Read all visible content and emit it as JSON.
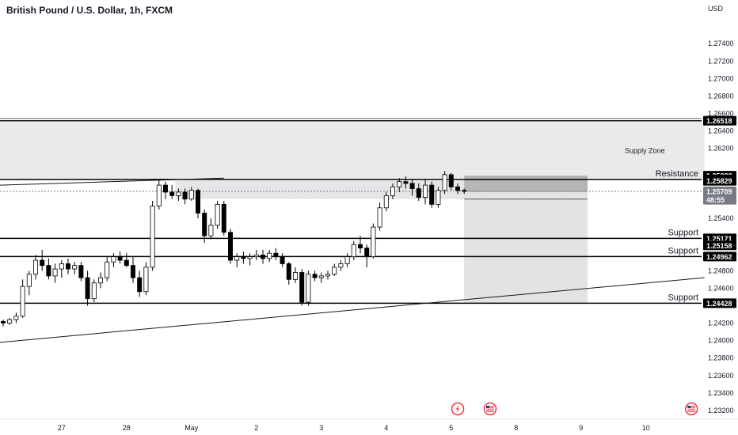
{
  "chart_data": {
    "type": "candlestick",
    "title": "British Pound / U.S. Dollar, 1h, FXCM",
    "currency": "USD",
    "ylim": [
      1.231,
      1.279
    ],
    "y_ticks": [
      "1.27400",
      "1.27200",
      "1.27000",
      "1.26800",
      "1.26600",
      "1.26400",
      "1.26200",
      "1.25400",
      "1.24800",
      "1.24600",
      "1.24200",
      "1.24000",
      "1.23800",
      "1.23600",
      "1.23400",
      "1.23200"
    ],
    "x_ticks": [
      {
        "label": "27",
        "i": 9
      },
      {
        "label": "28",
        "i": 19
      },
      {
        "label": "May",
        "i": 29
      },
      {
        "label": "2",
        "i": 39
      },
      {
        "label": "3",
        "i": 49
      },
      {
        "label": "4",
        "i": 59
      },
      {
        "label": "5",
        "i": 69
      },
      {
        "label": "8",
        "i": 79
      },
      {
        "label": "9",
        "i": 89
      },
      {
        "label": "10",
        "i": 99
      }
    ],
    "x_count": 110,
    "candles": [
      [
        1.2422,
        1.2424,
        1.2416,
        1.242
      ],
      [
        1.242,
        1.2426,
        1.2418,
        1.2424
      ],
      [
        1.2424,
        1.2432,
        1.242,
        1.2428
      ],
      [
        1.2428,
        1.247,
        1.2426,
        1.2462
      ],
      [
        1.2462,
        1.248,
        1.2452,
        1.2476
      ],
      [
        1.2476,
        1.2498,
        1.247,
        1.2492
      ],
      [
        1.2492,
        1.2504,
        1.248,
        1.2486
      ],
      [
        1.2486,
        1.2494,
        1.247,
        1.2474
      ],
      [
        1.2474,
        1.2488,
        1.2466,
        1.2482
      ],
      [
        1.2482,
        1.2492,
        1.2472,
        1.2488
      ],
      [
        1.2488,
        1.2494,
        1.2476,
        1.2482
      ],
      [
        1.2482,
        1.249,
        1.2476,
        1.2486
      ],
      [
        1.2486,
        1.249,
        1.2468,
        1.2472
      ],
      [
        1.2472,
        1.248,
        1.244,
        1.2448
      ],
      [
        1.2448,
        1.247,
        1.2444,
        1.2466
      ],
      [
        1.2466,
        1.2478,
        1.246,
        1.2472
      ],
      [
        1.2472,
        1.2496,
        1.2468,
        1.249
      ],
      [
        1.249,
        1.25,
        1.2484,
        1.2496
      ],
      [
        1.2496,
        1.2502,
        1.2488,
        1.2492
      ],
      [
        1.2492,
        1.25,
        1.2484,
        1.2486
      ],
      [
        1.2486,
        1.2496,
        1.2466,
        1.2472
      ],
      [
        1.2472,
        1.248,
        1.245,
        1.2456
      ],
      [
        1.2456,
        1.249,
        1.2452,
        1.2484
      ],
      [
        1.2484,
        1.256,
        1.248,
        1.2554
      ],
      [
        1.2554,
        1.2584,
        1.255,
        1.2578
      ],
      [
        1.2578,
        1.2582,
        1.2562,
        1.257
      ],
      [
        1.257,
        1.2578,
        1.2562,
        1.2566
      ],
      [
        1.2566,
        1.2574,
        1.256,
        1.257
      ],
      [
        1.257,
        1.2574,
        1.2556,
        1.2562
      ],
      [
        1.2562,
        1.2576,
        1.256,
        1.2572
      ],
      [
        1.2572,
        1.2574,
        1.254,
        1.2546
      ],
      [
        1.2546,
        1.255,
        1.2512,
        1.252
      ],
      [
        1.252,
        1.254,
        1.2516,
        1.2532
      ],
      [
        1.2532,
        1.256,
        1.2528,
        1.2556
      ],
      [
        1.2556,
        1.256,
        1.252,
        1.2524
      ],
      [
        1.2524,
        1.2528,
        1.2488,
        1.2492
      ],
      [
        1.2492,
        1.25,
        1.2484,
        1.2496
      ],
      [
        1.2496,
        1.2502,
        1.2488,
        1.2494
      ],
      [
        1.2494,
        1.25,
        1.2486,
        1.2496
      ],
      [
        1.2496,
        1.2504,
        1.2492,
        1.2498
      ],
      [
        1.2498,
        1.2504,
        1.2488,
        1.2494
      ],
      [
        1.2494,
        1.2504,
        1.249,
        1.25
      ],
      [
        1.25,
        1.2506,
        1.2492,
        1.2496
      ],
      [
        1.2496,
        1.25,
        1.2484,
        1.2488
      ],
      [
        1.2488,
        1.249,
        1.2464,
        1.247
      ],
      [
        1.247,
        1.2484,
        1.2466,
        1.2478
      ],
      [
        1.2478,
        1.2482,
        1.244,
        1.2444
      ],
      [
        1.2444,
        1.248,
        1.244,
        1.2476
      ],
      [
        1.2476,
        1.248,
        1.2468,
        1.2472
      ],
      [
        1.2472,
        1.2478,
        1.2466,
        1.2474
      ],
      [
        1.2474,
        1.248,
        1.247,
        1.2476
      ],
      [
        1.2476,
        1.2488,
        1.2474,
        1.2484
      ],
      [
        1.2484,
        1.2492,
        1.248,
        1.2488
      ],
      [
        1.2488,
        1.25,
        1.2484,
        1.2496
      ],
      [
        1.2496,
        1.2514,
        1.2492,
        1.251
      ],
      [
        1.251,
        1.252,
        1.25,
        1.2506
      ],
      [
        1.2506,
        1.251,
        1.2484,
        1.2496
      ],
      [
        1.2496,
        1.2534,
        1.2494,
        1.253
      ],
      [
        1.253,
        1.2558,
        1.2526,
        1.2552
      ],
      [
        1.2552,
        1.257,
        1.2548,
        1.2566
      ],
      [
        1.2566,
        1.258,
        1.2562,
        1.2576
      ],
      [
        1.2576,
        1.2586,
        1.257,
        1.2582
      ],
      [
        1.2582,
        1.2588,
        1.2574,
        1.258
      ],
      [
        1.258,
        1.2584,
        1.2566,
        1.2574
      ],
      [
        1.2574,
        1.258,
        1.256,
        1.2564
      ],
      [
        1.2564,
        1.2584,
        1.2556,
        1.2578
      ],
      [
        1.2578,
        1.2582,
        1.2552,
        1.2556
      ],
      [
        1.2556,
        1.2576,
        1.2552,
        1.2572
      ],
      [
        1.2572,
        1.2594,
        1.2568,
        1.259
      ],
      [
        1.259,
        1.2592,
        1.2572,
        1.2576
      ],
      [
        1.2576,
        1.258,
        1.2568,
        1.2572
      ],
      [
        1.2572,
        1.2574,
        1.2568,
        1.2571
      ]
    ],
    "zones": [
      {
        "name": "Supply Zone",
        "top": 1.26518,
        "bottom": 1.25845,
        "x_start": 0,
        "x_end": 108
      },
      {
        "name": "",
        "top": 1.25829,
        "bottom": 1.2562,
        "x_start": 27,
        "x_end": 71
      }
    ],
    "position": {
      "entry": 1.25709,
      "target": 1.24428,
      "stop": 1.25888,
      "x_start": 71,
      "x_end": 90
    },
    "levels": [
      {
        "price": 1.26518,
        "label": "",
        "bold": true
      },
      {
        "price": 1.25845,
        "label": "Resistance",
        "bold": true
      },
      {
        "price": 1.25171,
        "label": "Support",
        "bold": true
      },
      {
        "price": 1.24962,
        "label": "Support",
        "bold": true
      },
      {
        "price": 1.24428,
        "label": "Support",
        "bold": true
      }
    ],
    "trendlines": [
      {
        "from": [
          0,
          1.2578
        ],
        "to": [
          34,
          1.2586
        ]
      },
      {
        "from": [
          0,
          1.2398
        ],
        "to": [
          108,
          1.2472
        ]
      }
    ],
    "price_badges": [
      {
        "text": "1.26518",
        "price": 1.26518,
        "style": "dark"
      },
      {
        "text": "1.25888",
        "price": 1.25888,
        "style": "dark"
      },
      {
        "text": "1.25845",
        "price": 1.25845,
        "style": "dark"
      },
      {
        "text": "1.25829",
        "price": 1.25829,
        "style": "dark"
      },
      {
        "text": "1.25709",
        "price": 1.25709,
        "style": "grey"
      },
      {
        "text": "48:55",
        "price": 1.25612,
        "style": "grey"
      },
      {
        "text": "1.25171",
        "price": 1.25171,
        "style": "dark"
      },
      {
        "text": "1.25158",
        "price": 1.2509,
        "style": "dark"
      },
      {
        "text": "1.24962",
        "price": 1.24962,
        "style": "dark"
      },
      {
        "text": "1.24428",
        "price": 1.24428,
        "style": "dark"
      }
    ],
    "events": [
      {
        "name": "lightning-event-icon",
        "i": 70,
        "color": "#f23645"
      },
      {
        "name": "us-flag-event-icon",
        "i": 75,
        "color": "#f23645"
      },
      {
        "name": "us-flag-event-icon-2",
        "i": 106,
        "color": "#f23645"
      }
    ],
    "colors": {
      "candle": "#000000",
      "zone": "#e6e6e8",
      "position_top": "#9e9e9e",
      "position_bottom": "#e0e0e0",
      "badge_dark": "#000000",
      "badge_grey": "#787b86"
    }
  }
}
